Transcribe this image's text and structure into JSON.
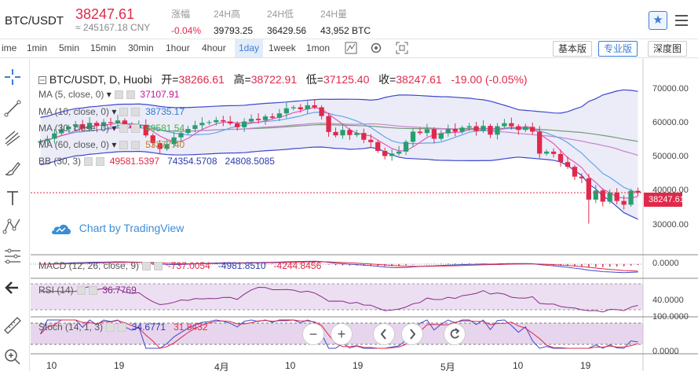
{
  "header": {
    "pair": "BTC/USDT",
    "price": "38247.61",
    "price_cny": "≈ 245167.18 CNY",
    "stats": [
      {
        "label": "涨幅",
        "value": "-0.04%",
        "red": true
      },
      {
        "label": "24H高",
        "value": "39793.25"
      },
      {
        "label": "24H低",
        "value": "36429.56"
      },
      {
        "label": "24H量",
        "value": "43,952 BTC"
      }
    ]
  },
  "toolbar": {
    "intervals": [
      "ime",
      "1min",
      "5min",
      "15min",
      "30min",
      "1hour",
      "4hour",
      "1day",
      "1week",
      "1mon"
    ],
    "selected": "1day",
    "views": [
      "基本版",
      "专业版",
      "深度图"
    ],
    "active_view": "专业版"
  },
  "legend": {
    "symbol": "BTC/USDT, D, Huobi",
    "open_label": "开=",
    "open": "38266.61",
    "high_label": "高=",
    "high": "38722.91",
    "low_label": "低=",
    "low": "37125.40",
    "close_label": "收=",
    "close": "38247.61",
    "change": "-19.00 (-0.05%)",
    "ma": [
      {
        "label": "MA (5, close, 0)",
        "value": "37107.91",
        "color": "#c0139c"
      },
      {
        "label": "MA (10, close, 0)",
        "value": "38735.17",
        "color": "#2d7bd6"
      },
      {
        "label": "MA (30, close, 0)",
        "value": "49581.54",
        "color": "#3fb33f"
      },
      {
        "label": "MA (60, close, 0)",
        "value": "53377.40",
        "color": "#c07a20"
      }
    ],
    "bb": {
      "label": "BB (30, 3)",
      "values": [
        "49581.5397",
        "74354.5708",
        "24808.5085"
      ]
    }
  },
  "watermark": "Chart by TradingView",
  "price_axis": [
    "70000.00",
    "60000.00",
    "50000.00",
    "40000.00",
    "30000.00"
  ],
  "current_price_label": "38247.61",
  "macd": {
    "label": "MACD (12, 26, close, 9)",
    "values": [
      "-737.0054",
      "-4981.8510",
      "-4244.8456"
    ],
    "axis": "0.0000"
  },
  "rsi": {
    "label": "RSI (14)",
    "value": "36.7769",
    "axis": "40.0000"
  },
  "stoch": {
    "label": "Stoch (14, 1, 3)",
    "values": [
      "34.6771",
      "31.8432"
    ],
    "axis_top": "100.0000",
    "axis_bottom": "0.0000"
  },
  "time_axis": [
    "10",
    "19",
    "4月",
    "10",
    "19",
    "5月",
    "10",
    "19"
  ],
  "zoom": {
    "minus": "−",
    "plus": "+"
  },
  "colors": {
    "up": "#2a9d6f",
    "down": "#e0294a",
    "accent": "#3b7ed6"
  },
  "chart_data": {
    "type": "candlestick",
    "title": "BTC/USDT, D, Huobi",
    "y_range": [
      22000,
      75000
    ],
    "closes": [
      53500,
      54200,
      55800,
      57000,
      57800,
      58500,
      57200,
      58900,
      58000,
      59100,
      58800,
      59600,
      58100,
      57400,
      58300,
      55200,
      52900,
      51200,
      52600,
      54600,
      55900,
      57100,
      58200,
      58900,
      59100,
      59700,
      59300,
      58700,
      57600,
      59300,
      60100,
      59700,
      60800,
      60400,
      61700,
      63200,
      63500,
      62900,
      64100,
      63500,
      60900,
      56200,
      55200,
      56800,
      55300,
      55900,
      53900,
      53200,
      50600,
      49100,
      49800,
      50400,
      53300,
      56300,
      55900,
      57000,
      54200,
      55800,
      57100,
      56300,
      57500,
      57900,
      56500,
      58000,
      55400,
      57900,
      58800,
      57900,
      56800,
      57700,
      56300,
      49800,
      50400,
      49700,
      47300,
      45900,
      43000,
      42500,
      36200,
      38900,
      35600,
      38300,
      35800,
      34700,
      38800,
      38248
    ]
  }
}
